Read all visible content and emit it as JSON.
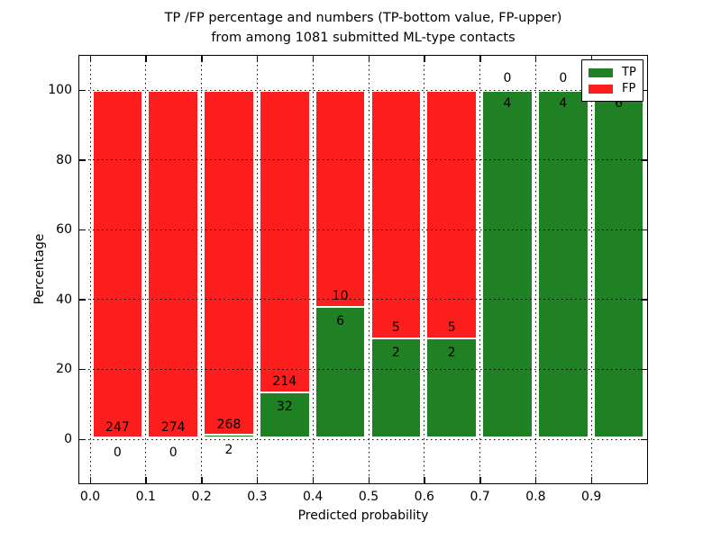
{
  "figure": {
    "title_line1": "TP /FP percentage and numbers (TP-bottom value, FP-upper)",
    "title_line2": "from among 1081 submitted ML-type contacts"
  },
  "chart_data": {
    "type": "bar",
    "stacked": true,
    "title": "TP /FP percentage and numbers (TP-bottom value, FP-upper)\nfrom among 1081 submitted ML-type contacts",
    "total_submitted_contacts": 1081,
    "xlabel": "Predicted probability",
    "ylabel": "Percentage",
    "x_ticks": [
      0.0,
      0.1,
      0.2,
      0.3,
      0.4,
      0.5,
      0.6,
      0.7,
      0.8,
      0.9
    ],
    "x_tick_labels": [
      "0.0",
      "0.1",
      "0.2",
      "0.3",
      "0.4",
      "0.5",
      "0.6",
      "0.7",
      "0.8",
      "0.9"
    ],
    "y_ticks": [
      0,
      20,
      40,
      60,
      80,
      100
    ],
    "y_tick_labels": [
      "0",
      "20",
      "40",
      "60",
      "80",
      "100"
    ],
    "xlim": [
      -0.02,
      1.0
    ],
    "ylim": [
      -12.6,
      109.8
    ],
    "bin_width": 0.1,
    "bin_starts": [
      0.0,
      0.1,
      0.2,
      0.3,
      0.4,
      0.5,
      0.6,
      0.7,
      0.8,
      0.9
    ],
    "grid": "dotted",
    "bars_normalized_to_percent": true,
    "series": [
      {
        "name": "TP",
        "color": "#208024",
        "values": [
          0,
          0,
          2,
          32,
          6,
          2,
          2,
          4,
          4,
          6
        ]
      },
      {
        "name": "FP",
        "color": "#fc1d1d",
        "values": [
          247,
          274,
          268,
          214,
          10,
          5,
          5,
          0,
          0,
          0
        ]
      }
    ],
    "legend": {
      "position": "upper right",
      "entries": [
        {
          "label": "TP",
          "color": "#208024"
        },
        {
          "label": "FP",
          "color": "#fc1d1d"
        }
      ]
    }
  }
}
